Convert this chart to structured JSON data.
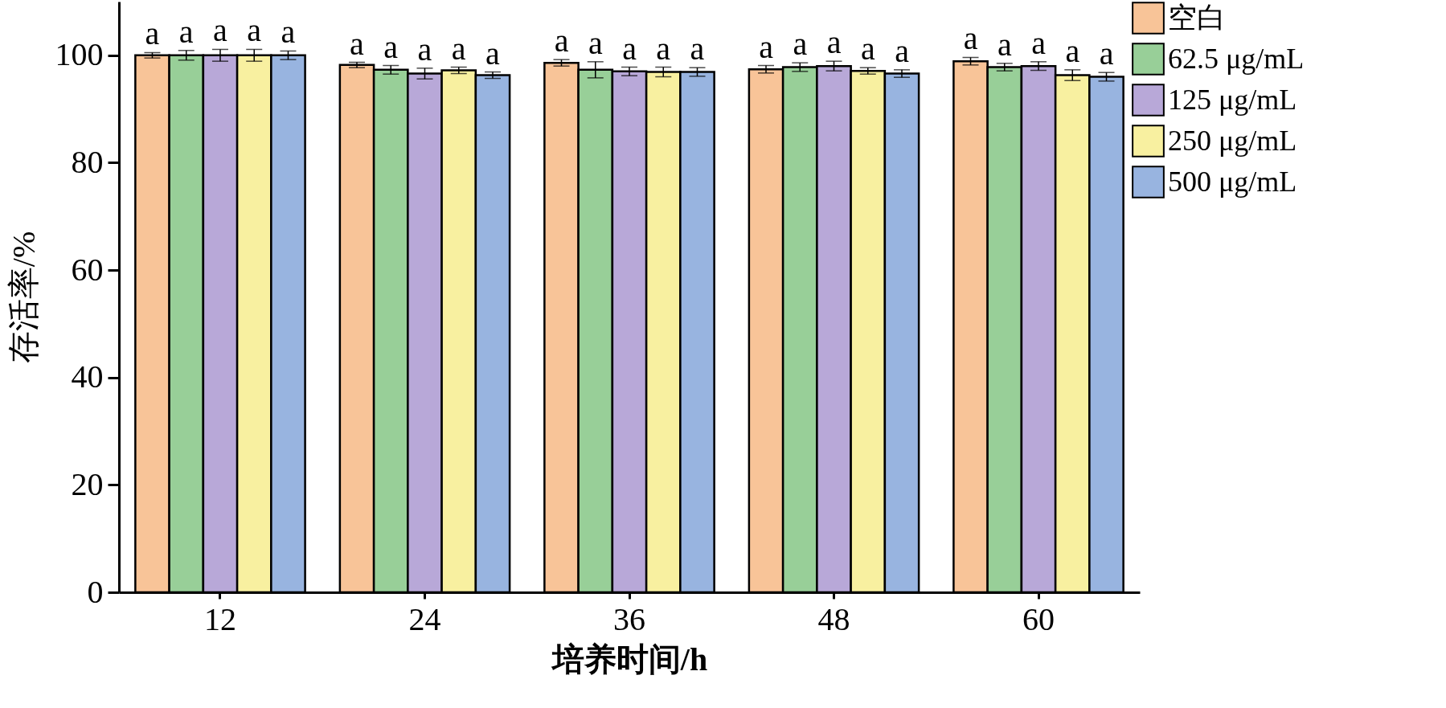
{
  "chart_data": {
    "type": "bar",
    "xlabel": "培养时间/h",
    "ylabel": "存活率/%",
    "categories": [
      "12",
      "24",
      "36",
      "48",
      "60"
    ],
    "ylim": [
      0,
      110
    ],
    "yticks": [
      0,
      20,
      40,
      60,
      80,
      100
    ],
    "legend": "top right",
    "grid": false,
    "series": [
      {
        "name": "空白",
        "color": "#f8c498",
        "values": [
          100,
          98.2,
          98.6,
          97.4,
          98.9
        ],
        "errors": [
          0.5,
          0.5,
          0.6,
          0.7,
          0.7
        ],
        "value_labels": [
          "a",
          "a",
          "a",
          "a",
          "a"
        ]
      },
      {
        "name": "62.5 μg/mL",
        "color": "#98cf98",
        "values": [
          100,
          97.3,
          97.3,
          97.8,
          97.8
        ],
        "errors": [
          0.9,
          0.8,
          1.5,
          0.8,
          0.7
        ],
        "value_labels": [
          "a",
          "a",
          "a",
          "a",
          "a"
        ]
      },
      {
        "name": "125 μg/mL",
        "color": "#b8a8d8",
        "values": [
          100,
          96.6,
          97.0,
          98.0,
          98.0
        ],
        "errors": [
          1.1,
          1.0,
          0.8,
          0.9,
          0.8
        ],
        "value_labels": [
          "a",
          "a",
          "a",
          "a",
          "a"
        ]
      },
      {
        "name": "250 μg/mL",
        "color": "#f8f0a0",
        "values": [
          100,
          97.2,
          96.9,
          97.1,
          96.3
        ],
        "errors": [
          1.1,
          0.6,
          0.9,
          0.6,
          1.0
        ],
        "value_labels": [
          "a",
          "a",
          "a",
          "a",
          "a"
        ]
      },
      {
        "name": "500 μg/mL",
        "color": "#98b4e0",
        "values": [
          100,
          96.3,
          96.9,
          96.6,
          96.0
        ],
        "errors": [
          0.8,
          0.6,
          0.8,
          0.7,
          0.8
        ],
        "value_labels": [
          "a",
          "a",
          "a",
          "a",
          "a"
        ]
      }
    ]
  }
}
